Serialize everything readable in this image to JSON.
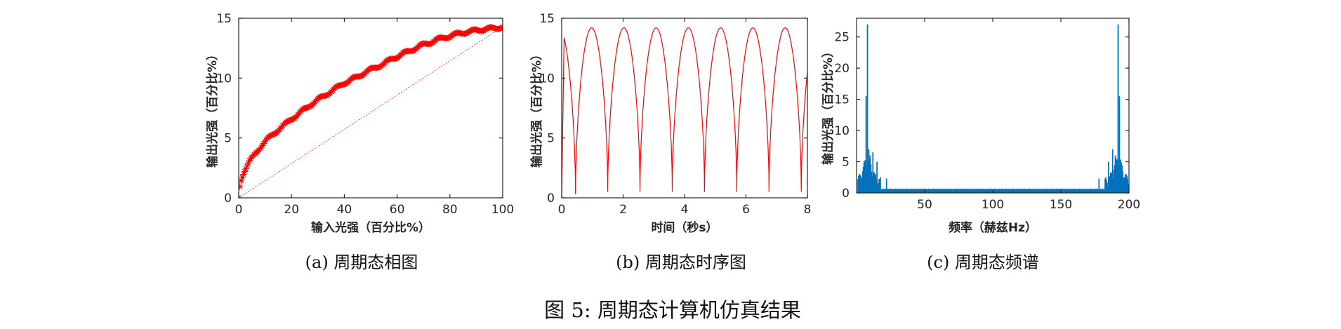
{
  "figure_caption": "图 5: 周期态计算机仿真结果",
  "colors": {
    "red": "#ff0000",
    "blue": "#0072bd",
    "axis": "#262626"
  },
  "chart_data": [
    {
      "id": "a",
      "type": "scatter",
      "caption": "(a) 周期态相图",
      "xlabel": "输入光强（百分比%）",
      "ylabel": "输出光强（百分比%）",
      "xlim": [
        0,
        100
      ],
      "ylim": [
        0,
        15
      ],
      "xticks": [
        0,
        20,
        40,
        60,
        80,
        100
      ],
      "yticks": [
        0,
        5,
        10,
        15
      ],
      "series": [
        {
          "marker": "asterisk",
          "color": "#ff0000",
          "x": [
            0,
            0.5,
            1,
            1.5,
            2,
            3,
            4,
            5,
            6,
            8,
            10,
            12,
            15,
            18,
            20,
            22,
            25,
            28,
            30,
            33,
            35,
            38,
            40,
            43,
            45,
            48,
            50,
            53,
            55,
            58,
            60,
            63,
            65,
            68,
            70,
            73,
            75,
            78,
            80,
            83,
            85,
            88,
            90,
            92,
            94,
            96,
            98,
            100
          ],
          "y": [
            0,
            1.1,
            1.6,
            1.9,
            2.2,
            2.6,
            3.0,
            3.3,
            3.6,
            4.2,
            4.7,
            5.1,
            5.7,
            6.2,
            6.6,
            6.9,
            7.4,
            7.9,
            8.2,
            8.6,
            8.9,
            9.3,
            9.6,
            9.9,
            10.1,
            10.5,
            10.7,
            11.0,
            11.2,
            11.6,
            11.8,
            12.1,
            12.3,
            12.6,
            12.8,
            13.0,
            13.2,
            13.4,
            13.5,
            13.7,
            13.8,
            13.9,
            14.0,
            14.05,
            14.1,
            14.15,
            14.2,
            14.3
          ]
        },
        {
          "style": "dotted-line",
          "color": "#ff0000",
          "x": [
            0,
            100
          ],
          "y": [
            0,
            14.3
          ]
        }
      ]
    },
    {
      "id": "b",
      "type": "line",
      "caption": "(b) 周期态时序图",
      "xlabel": "时间（秒s）",
      "ylabel": "输出光强（百分比%）",
      "xlim": [
        0,
        8
      ],
      "ylim": [
        0,
        15
      ],
      "xticks": [
        0,
        2,
        4,
        6,
        8
      ],
      "yticks": [
        0,
        5,
        10,
        15
      ],
      "series": [
        {
          "color": "#ff0000",
          "period": 1.05,
          "phase": 0.6,
          "ymax": 14.2,
          "minima": [
            0.3,
            0.5,
            0.5,
            0.5,
            0.5,
            0.5,
            0.5,
            0.5,
            0.5
          ]
        }
      ]
    },
    {
      "id": "c",
      "type": "bar",
      "caption": "(c) 周期态频谱",
      "xlabel": "频率（赫兹Hz）",
      "ylabel": "输出光强（百分比%）",
      "xlim": [
        0,
        200
      ],
      "ylim": [
        0,
        28
      ],
      "xticks": [
        50,
        100,
        150,
        200
      ],
      "yticks": [
        0,
        5,
        10,
        15,
        20,
        25
      ],
      "series": [
        {
          "color": "#0072bd",
          "peaks": [
            {
              "x": 8,
              "y": 27
            },
            {
              "x": 7,
              "y": 15.5
            },
            {
              "x": 9,
              "y": 7
            },
            {
              "x": 10,
              "y": 6
            },
            {
              "x": 12,
              "y": 6.5
            },
            {
              "x": 15,
              "y": 5
            },
            {
              "x": 22,
              "y": 2.3
            },
            {
              "x": 178,
              "y": 2.3
            },
            {
              "x": 185,
              "y": 5
            },
            {
              "x": 188,
              "y": 7
            },
            {
              "x": 190,
              "y": 6
            },
            {
              "x": 192,
              "y": 27
            },
            {
              "x": 193,
              "y": 15.5
            }
          ],
          "floor": 0.4
        }
      ]
    }
  ]
}
